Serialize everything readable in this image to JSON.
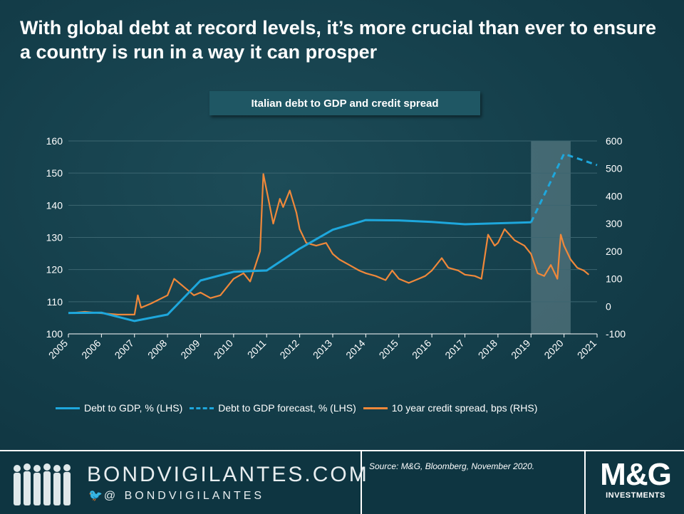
{
  "headline": "With global debt at record levels, it’s more crucial than ever to ensure a country is run in a way it can prosper",
  "subtitle": "Italian debt to GDP and credit spread",
  "colors": {
    "debt": "#1ea7dc",
    "spread": "#f0883a",
    "shade": "#9fb7bd",
    "grid": "#3c6671"
  },
  "chart_data": {
    "type": "line",
    "x_ticks": [
      "2005",
      "2006",
      "2007",
      "2008",
      "2009",
      "2010",
      "2011",
      "2012",
      "2013",
      "2014",
      "2015",
      "2016",
      "2017",
      "2018",
      "2019",
      "2020",
      "2021"
    ],
    "xlim": [
      2005,
      2021
    ],
    "y_left": {
      "ylim": [
        100,
        160
      ],
      "ticks": [
        "100",
        "110",
        "120",
        "130",
        "140",
        "150",
        "160"
      ]
    },
    "y_right": {
      "ylim": [
        -100,
        600
      ],
      "ticks": [
        "-100",
        "0",
        "100",
        "200",
        "300",
        "400",
        "500",
        "600"
      ]
    },
    "shaded_region": [
      2019,
      2020.2
    ],
    "series": [
      {
        "name": "Debt to GDP, % (LHS)",
        "axis": "left",
        "style": "solid",
        "points": [
          [
            2005,
            106.5
          ],
          [
            2006,
            106.6
          ],
          [
            2007,
            104
          ],
          [
            2008,
            106
          ],
          [
            2009,
            116.6
          ],
          [
            2010,
            119.3
          ],
          [
            2011,
            119.7
          ],
          [
            2012,
            126.5
          ],
          [
            2013,
            132.4
          ],
          [
            2014,
            135.4
          ],
          [
            2015,
            135.3
          ],
          [
            2016,
            134.8
          ],
          [
            2017,
            134.1
          ],
          [
            2018,
            134.4
          ],
          [
            2019,
            134.7
          ]
        ]
      },
      {
        "name": "Debt to GDP forecast, % (LHS)",
        "axis": "left",
        "style": "dashed",
        "points": [
          [
            2019,
            134.7
          ],
          [
            2020,
            156
          ],
          [
            2021,
            152.5
          ]
        ]
      },
      {
        "name": "10 year credit spread, bps (RHS)",
        "axis": "right",
        "style": "solid",
        "points": [
          [
            2005,
            -25
          ],
          [
            2005.5,
            -20
          ],
          [
            2006,
            -25
          ],
          [
            2006.5,
            -30
          ],
          [
            2007,
            -30
          ],
          [
            2007.1,
            40
          ],
          [
            2007.2,
            -5
          ],
          [
            2007.5,
            10
          ],
          [
            2008,
            40
          ],
          [
            2008.2,
            100
          ],
          [
            2008.5,
            70
          ],
          [
            2008.8,
            40
          ],
          [
            2009,
            50
          ],
          [
            2009.3,
            30
          ],
          [
            2009.6,
            40
          ],
          [
            2010,
            100
          ],
          [
            2010.3,
            120
          ],
          [
            2010.5,
            90
          ],
          [
            2010.8,
            200
          ],
          [
            2010.9,
            480
          ],
          [
            2011,
            420
          ],
          [
            2011.2,
            300
          ],
          [
            2011.4,
            390
          ],
          [
            2011.5,
            360
          ],
          [
            2011.7,
            420
          ],
          [
            2011.9,
            340
          ],
          [
            2012,
            280
          ],
          [
            2012.2,
            230
          ],
          [
            2012.5,
            220
          ],
          [
            2012.8,
            230
          ],
          [
            2013,
            190
          ],
          [
            2013.2,
            170
          ],
          [
            2013.5,
            150
          ],
          [
            2013.8,
            130
          ],
          [
            2014,
            120
          ],
          [
            2014.3,
            110
          ],
          [
            2014.6,
            95
          ],
          [
            2014.8,
            130
          ],
          [
            2015,
            100
          ],
          [
            2015.3,
            85
          ],
          [
            2015.6,
            100
          ],
          [
            2015.8,
            110
          ],
          [
            2016,
            130
          ],
          [
            2016.3,
            175
          ],
          [
            2016.5,
            140
          ],
          [
            2016.8,
            130
          ],
          [
            2017,
            115
          ],
          [
            2017.3,
            110
          ],
          [
            2017.5,
            100
          ],
          [
            2017.7,
            260
          ],
          [
            2017.9,
            220
          ],
          [
            2018,
            230
          ],
          [
            2018.2,
            280
          ],
          [
            2018.5,
            240
          ],
          [
            2018.8,
            220
          ],
          [
            2019,
            190
          ],
          [
            2019.2,
            120
          ],
          [
            2019.4,
            110
          ],
          [
            2019.6,
            150
          ],
          [
            2019.8,
            100
          ],
          [
            2019.9,
            260
          ],
          [
            2020,
            220
          ],
          [
            2020.2,
            170
          ],
          [
            2020.4,
            140
          ],
          [
            2020.6,
            130
          ],
          [
            2020.75,
            115
          ]
        ]
      }
    ]
  },
  "footer": {
    "brand": "BONDVIGILANTES.COM",
    "twitter_prefix": "@",
    "handle": "BONDVIGILANTES",
    "source": "Source: M&G, Bloomberg, November 2020.",
    "logo_text": "M&G",
    "logo_sub": "INVESTMENTS"
  }
}
